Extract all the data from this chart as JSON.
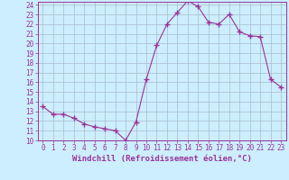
{
  "x": [
    0,
    1,
    2,
    3,
    4,
    5,
    6,
    7,
    8,
    9,
    10,
    11,
    12,
    13,
    14,
    15,
    16,
    17,
    18,
    19,
    20,
    21,
    22,
    23
  ],
  "y": [
    13.5,
    12.7,
    12.7,
    12.3,
    11.7,
    11.4,
    11.2,
    11.0,
    10.0,
    11.9,
    16.3,
    19.8,
    22.0,
    23.2,
    24.4,
    23.8,
    22.2,
    22.0,
    23.0,
    21.2,
    20.8,
    20.7,
    16.3,
    15.5
  ],
  "line_color": "#993399",
  "marker": "+",
  "marker_size": 4,
  "bg_color": "#cceeff",
  "grid_color": "#aabbcc",
  "xlabel": "Windchill (Refroidissement éolien,°C)",
  "ylim": [
    10,
    24
  ],
  "xlim": [
    -0.5,
    23.5
  ],
  "yticks": [
    10,
    11,
    12,
    13,
    14,
    15,
    16,
    17,
    18,
    19,
    20,
    21,
    22,
    23,
    24
  ],
  "xticks": [
    0,
    1,
    2,
    3,
    4,
    5,
    6,
    7,
    8,
    9,
    10,
    11,
    12,
    13,
    14,
    15,
    16,
    17,
    18,
    19,
    20,
    21,
    22,
    23
  ],
  "axis_color": "#993399",
  "tick_color": "#993399",
  "label_color": "#993399",
  "tick_fontsize": 5.5,
  "xlabel_fontsize": 6.5
}
